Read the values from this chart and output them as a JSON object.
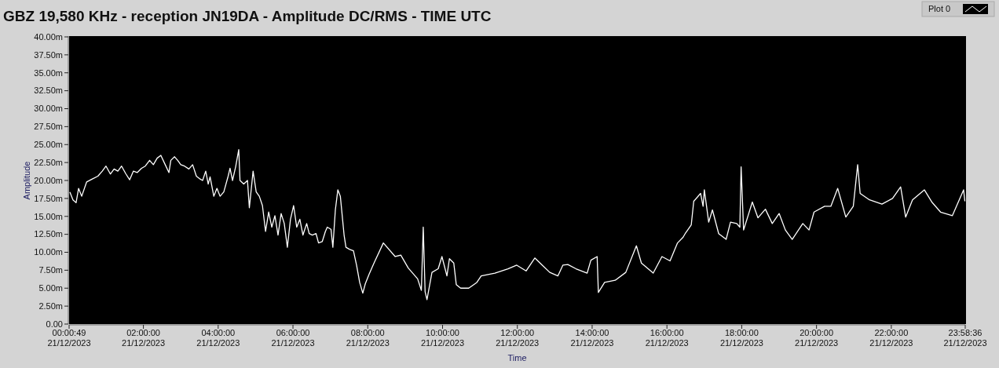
{
  "chart_data": {
    "type": "line",
    "title": "GBZ  19,580 KHz - reception JN19DA -  Amplitude DC/RMS   - TIME UTC",
    "xlabel": "Time",
    "ylabel": "Amplitude",
    "legend": "top right",
    "grid": false,
    "marker": "none",
    "line_style": "solid",
    "xlim": [
      "2023-12-21T00:00:49",
      "2023-12-21T23:58:36"
    ],
    "ylim": [
      0,
      40
    ],
    "xticks": [
      {
        "value": "2023-12-21T00:00:49",
        "label": "00:00:49\n21/12/2023"
      },
      {
        "value": "2023-12-21T02:00",
        "label": "02:00:00\n21/12/2023"
      },
      {
        "value": "2023-12-21T04:00",
        "label": "04:00:00\n21/12/2023"
      },
      {
        "value": "2023-12-21T06:00",
        "label": "06:00:00\n21/12/2023"
      },
      {
        "value": "2023-12-21T08:00",
        "label": "08:00:00\n21/12/2023"
      },
      {
        "value": "2023-12-21T10:00",
        "label": "10:00:00\n21/12/2023"
      },
      {
        "value": "2023-12-21T12:00",
        "label": "12:00:00\n21/12/2023"
      },
      {
        "value": "2023-12-21T14:00",
        "label": "14:00:00\n21/12/2023"
      },
      {
        "value": "2023-12-21T16:00",
        "label": "16:00:00\n21/12/2023"
      },
      {
        "value": "2023-12-21T18:00",
        "label": "18:00:00\n21/12/2023"
      },
      {
        "value": "2023-12-21T20:00",
        "label": "20:00:00\n21/12/2023"
      },
      {
        "value": "2023-12-21T22:00",
        "label": "22:00:00\n21/12/2023"
      },
      {
        "value": "2023-12-21T23:58:36",
        "label": "23:58:36\n21/12/2023"
      }
    ],
    "yticks": [
      {
        "value": 0,
        "label": "0.00"
      },
      {
        "value": 2.5,
        "label": "2.50m"
      },
      {
        "value": 5,
        "label": "5.00m"
      },
      {
        "value": 7.5,
        "label": "7.50m"
      },
      {
        "value": 10,
        "label": "10.00m"
      },
      {
        "value": 12.5,
        "label": "12.50m"
      },
      {
        "value": 15,
        "label": "15.00m"
      },
      {
        "value": 17.5,
        "label": "17.50m"
      },
      {
        "value": 20,
        "label": "20.00m"
      },
      {
        "value": 22.5,
        "label": "22.50m"
      },
      {
        "value": 25,
        "label": "25.00m"
      },
      {
        "value": 27.5,
        "label": "27.50m"
      },
      {
        "value": 30,
        "label": "30.00m"
      },
      {
        "value": 32.5,
        "label": "32.50m"
      },
      {
        "value": 35,
        "label": "35.00m"
      },
      {
        "value": 37.5,
        "label": "37.50m"
      },
      {
        "value": 40,
        "label": "40.00m"
      }
    ],
    "series": [
      {
        "name": "Plot 0",
        "color": "#ffffff",
        "x": [
          "2023-12-21T00:02",
          "2023-12-21T00:07",
          "2023-12-21T00:12",
          "2023-12-21T00:16",
          "2023-12-21T00:21",
          "2023-12-21T00:29",
          "2023-12-21T00:38",
          "2023-12-21T00:47",
          "2023-12-21T00:54",
          "2023-12-21T01:00",
          "2023-12-21T01:07",
          "2023-12-21T01:13",
          "2023-12-21T01:19",
          "2023-12-21T01:25",
          "2023-12-21T01:32",
          "2023-12-21T01:38",
          "2023-12-21T01:44",
          "2023-12-21T01:50",
          "2023-12-21T01:57",
          "2023-12-21T02:03",
          "2023-12-21T02:10",
          "2023-12-21T02:16",
          "2023-12-21T02:22",
          "2023-12-21T02:28",
          "2023-12-21T02:35",
          "2023-12-21T02:41",
          "2023-12-21T02:44",
          "2023-12-21T02:50",
          "2023-12-21T02:55",
          "2023-12-21T03:00",
          "2023-12-21T03:06",
          "2023-12-21T03:13",
          "2023-12-21T03:19",
          "2023-12-21T03:25",
          "2023-12-21T03:31",
          "2023-12-21T03:35",
          "2023-12-21T03:40",
          "2023-12-21T03:44",
          "2023-12-21T03:47",
          "2023-12-21T03:53",
          "2023-12-21T03:58",
          "2023-12-21T04:03",
          "2023-12-21T04:09",
          "2023-12-21T04:16",
          "2023-12-21T04:19",
          "2023-12-21T04:23",
          "2023-12-21T04:28",
          "2023-12-21T04:33",
          "2023-12-21T04:35",
          "2023-12-21T04:41",
          "2023-12-21T04:47",
          "2023-12-21T04:50",
          "2023-12-21T04:56",
          "2023-12-21T05:01",
          "2023-12-21T05:06",
          "2023-12-21T05:11",
          "2023-12-21T05:16",
          "2023-12-21T05:21",
          "2023-12-21T05:26",
          "2023-12-21T05:31",
          "2023-12-21T05:36",
          "2023-12-21T05:41",
          "2023-12-21T05:46",
          "2023-12-21T05:51",
          "2023-12-21T05:56",
          "2023-12-21T06:01",
          "2023-12-21T06:06",
          "2023-12-21T06:11",
          "2023-12-21T06:16",
          "2023-12-21T06:22",
          "2023-12-21T06:26",
          "2023-12-21T06:31",
          "2023-12-21T06:37",
          "2023-12-21T06:41",
          "2023-12-21T06:47",
          "2023-12-21T06:52",
          "2023-12-21T06:55",
          "2023-12-21T07:01",
          "2023-12-21T07:04",
          "2023-12-21T07:08",
          "2023-12-21T07:12",
          "2023-12-21T07:16",
          "2023-12-21T07:19",
          "2023-12-21T07:22",
          "2023-12-21T07:25",
          "2023-12-21T07:31",
          "2023-12-21T07:37",
          "2023-12-21T07:42",
          "2023-12-21T07:47",
          "2023-12-21T07:52",
          "2023-12-21T07:56",
          "2023-12-21T08:02",
          "2023-12-21T08:10",
          "2023-12-21T08:25",
          "2023-12-21T08:44",
          "2023-12-21T08:53",
          "2023-12-21T09:05",
          "2023-12-21T09:20",
          "2023-12-21T09:26",
          "2023-12-21T09:29",
          "2023-12-21T09:32",
          "2023-12-21T09:35",
          "2023-12-21T09:43",
          "2023-12-21T09:53",
          "2023-12-21T09:59",
          "2023-12-21T10:07",
          "2023-12-21T10:11",
          "2023-12-21T10:18",
          "2023-12-21T10:22",
          "2023-12-21T10:29",
          "2023-12-21T10:42",
          "2023-12-21T10:55",
          "2023-12-21T11:02",
          "2023-12-21T11:24",
          "2023-12-21T11:45",
          "2023-12-21T11:59",
          "2023-12-21T12:14",
          "2023-12-21T12:28",
          "2023-12-21T12:40",
          "2023-12-21T12:52",
          "2023-12-21T13:05",
          "2023-12-21T13:13",
          "2023-12-21T13:21",
          "2023-12-21T13:34",
          "2023-12-21T13:52",
          "2023-12-21T13:58",
          "2023-12-21T14:08",
          "2023-12-21T14:10",
          "2023-12-21T14:20",
          "2023-12-21T14:37",
          "2023-12-21T14:54",
          "2023-12-21T15:11",
          "2023-12-21T15:19",
          "2023-12-21T15:38",
          "2023-12-21T15:52",
          "2023-12-21T16:05",
          "2023-12-21T16:17",
          "2023-12-21T16:26",
          "2023-12-21T16:30",
          "2023-12-21T16:39",
          "2023-12-21T16:43",
          "2023-12-21T16:54",
          "2023-12-21T16:58",
          "2023-12-21T17:00",
          "2023-12-21T17:07",
          "2023-12-21T17:13",
          "2023-12-21T17:23",
          "2023-12-21T17:35",
          "2023-12-21T17:42",
          "2023-12-21T17:52",
          "2023-12-21T17:57",
          "2023-12-21T17:59",
          "2023-12-21T18:03",
          "2023-12-21T18:17",
          "2023-12-21T18:26",
          "2023-12-21T18:38",
          "2023-12-21T18:49",
          "2023-12-21T19:00",
          "2023-12-21T19:10",
          "2023-12-21T19:21",
          "2023-12-21T19:38",
          "2023-12-21T19:48",
          "2023-12-21T19:56",
          "2023-12-21T20:13",
          "2023-12-21T20:23",
          "2023-12-21T20:34",
          "2023-12-21T20:47",
          "2023-12-21T20:59",
          "2023-12-21T21:06",
          "2023-12-21T21:10",
          "2023-12-21T21:25",
          "2023-12-21T21:45",
          "2023-12-21T22:02",
          "2023-12-21T22:15",
          "2023-12-21T22:23",
          "2023-12-21T22:34",
          "2023-12-21T22:53",
          "2023-12-21T23:05",
          "2023-12-21T23:19",
          "2023-12-21T23:38",
          "2023-12-21T23:56",
          "2023-12-21T23:58"
        ],
        "values": [
          18.4,
          17.3,
          16.9,
          18.9,
          17.8,
          19.8,
          20.2,
          20.6,
          21.3,
          22.0,
          20.9,
          21.6,
          21.3,
          22.0,
          20.9,
          20.1,
          21.3,
          21.1,
          21.7,
          22.0,
          22.8,
          22.2,
          23.1,
          23.5,
          22.2,
          21.1,
          22.8,
          23.3,
          22.8,
          22.2,
          22.0,
          21.6,
          22.2,
          20.6,
          20.2,
          20.0,
          21.3,
          19.5,
          20.5,
          17.8,
          18.9,
          17.8,
          18.4,
          20.6,
          21.7,
          20.0,
          21.9,
          24.3,
          20.0,
          19.5,
          20.0,
          16.2,
          21.3,
          18.4,
          17.8,
          16.5,
          12.9,
          15.6,
          13.5,
          15.1,
          12.4,
          15.4,
          14.0,
          10.7,
          14.6,
          16.5,
          13.5,
          14.6,
          12.4,
          14.0,
          12.6,
          12.4,
          12.6,
          11.3,
          11.5,
          12.9,
          13.5,
          13.2,
          10.7,
          15.9,
          18.7,
          17.8,
          15.1,
          12.4,
          10.7,
          10.4,
          10.2,
          8.2,
          5.8,
          4.3,
          5.6,
          6.9,
          8.5,
          11.3,
          9.4,
          9.6,
          7.8,
          6.3,
          4.7,
          13.5,
          4.5,
          3.4,
          7.2,
          7.7,
          9.4,
          6.7,
          9.1,
          8.5,
          5.5,
          5.0,
          5.0,
          5.8,
          6.7,
          7.1,
          7.7,
          8.2,
          7.4,
          9.2,
          8.2,
          7.2,
          6.7,
          8.2,
          8.3,
          7.7,
          7.1,
          8.9,
          9.4,
          4.4,
          5.8,
          6.1,
          7.2,
          10.9,
          8.5,
          7.1,
          9.4,
          8.8,
          11.3,
          12.1,
          12.7,
          13.8,
          17.1,
          18.2,
          16.4,
          18.7,
          14.2,
          15.9,
          12.6,
          11.8,
          14.2,
          14.0,
          13.5,
          21.9,
          13.1,
          17.0,
          14.8,
          16.0,
          14.0,
          15.4,
          13.1,
          11.8,
          14.0,
          13.1,
          15.6,
          16.4,
          16.4,
          18.9,
          14.9,
          16.4,
          22.2,
          18.2,
          17.3,
          16.7,
          17.5,
          19.1,
          14.9,
          17.3,
          18.7,
          17.0,
          15.6,
          15.1,
          18.7,
          17.1
        ]
      }
    ]
  }
}
